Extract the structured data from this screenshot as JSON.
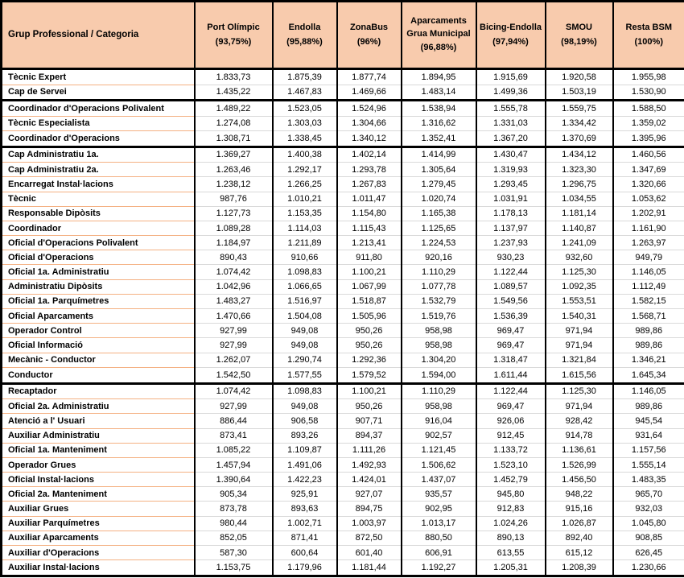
{
  "colors": {
    "header_bg": "#F8CBAD",
    "category_row_line": "#F4B183",
    "data_row_line": "#D9D9D9",
    "table_border": "#000000"
  },
  "table": {
    "header": {
      "category_label": "Grup Professional / Categoria",
      "columns": [
        {
          "name": "Port Olímpic",
          "pct": "(93,75%)"
        },
        {
          "name": "Endolla",
          "pct": "(95,88%)"
        },
        {
          "name": "ZonaBus",
          "pct": "(96%)"
        },
        {
          "name": "Aparcaments Grua Municipal",
          "pct": "(96,88%)"
        },
        {
          "name": "Bicing-Endolla",
          "pct": "(97,94%)"
        },
        {
          "name": "SMOU",
          "pct": "(98,19%)"
        },
        {
          "name": "Resta BSM",
          "pct": "(100%)"
        }
      ]
    },
    "groups": [
      {
        "rows": [
          {
            "label": "Tècnic Expert",
            "values": [
              "1.833,73",
              "1.875,39",
              "1.877,74",
              "1.894,95",
              "1.915,69",
              "1.920,58",
              "1.955,98"
            ]
          },
          {
            "label": "Cap de Servei",
            "values": [
              "1.435,22",
              "1.467,83",
              "1.469,66",
              "1.483,14",
              "1.499,36",
              "1.503,19",
              "1.530,90"
            ]
          }
        ]
      },
      {
        "rows": [
          {
            "label": "Coordinador d'Operacions Polivalent",
            "values": [
              "1.489,22",
              "1.523,05",
              "1.524,96",
              "1.538,94",
              "1.555,78",
              "1.559,75",
              "1.588,50"
            ]
          },
          {
            "label": "Tècnic Especialista",
            "values": [
              "1.274,08",
              "1.303,03",
              "1.304,66",
              "1.316,62",
              "1.331,03",
              "1.334,42",
              "1.359,02"
            ]
          },
          {
            "label": "Coordinador d'Operacions",
            "values": [
              "1.308,71",
              "1.338,45",
              "1.340,12",
              "1.352,41",
              "1.367,20",
              "1.370,69",
              "1.395,96"
            ]
          }
        ]
      },
      {
        "rows": [
          {
            "label": "Cap Administratiu 1a.",
            "values": [
              "1.369,27",
              "1.400,38",
              "1.402,14",
              "1.414,99",
              "1.430,47",
              "1.434,12",
              "1.460,56"
            ]
          },
          {
            "label": "Cap Administratiu 2a.",
            "values": [
              "1.263,46",
              "1.292,17",
              "1.293,78",
              "1.305,64",
              "1.319,93",
              "1.323,30",
              "1.347,69"
            ]
          },
          {
            "label": "Encarregat Instal·lacions",
            "values": [
              "1.238,12",
              "1.266,25",
              "1.267,83",
              "1.279,45",
              "1.293,45",
              "1.296,75",
              "1.320,66"
            ]
          },
          {
            "label": "Tècnic",
            "values": [
              "987,76",
              "1.010,21",
              "1.011,47",
              "1.020,74",
              "1.031,91",
              "1.034,55",
              "1.053,62"
            ]
          },
          {
            "label": "Responsable Dipòsits",
            "values": [
              "1.127,73",
              "1.153,35",
              "1.154,80",
              "1.165,38",
              "1.178,13",
              "1.181,14",
              "1.202,91"
            ]
          },
          {
            "label": "Coordinador",
            "values": [
              "1.089,28",
              "1.114,03",
              "1.115,43",
              "1.125,65",
              "1.137,97",
              "1.140,87",
              "1.161,90"
            ]
          },
          {
            "label": "Oficial d'Operacions Polivalent",
            "values": [
              "1.184,97",
              "1.211,89",
              "1.213,41",
              "1.224,53",
              "1.237,93",
              "1.241,09",
              "1.263,97"
            ]
          },
          {
            "label": "Oficial d'Operacions",
            "values": [
              "890,43",
              "910,66",
              "911,80",
              "920,16",
              "930,23",
              "932,60",
              "949,79"
            ]
          },
          {
            "label": "Oficial 1a. Administratiu",
            "values": [
              "1.074,42",
              "1.098,83",
              "1.100,21",
              "1.110,29",
              "1.122,44",
              "1.125,30",
              "1.146,05"
            ]
          },
          {
            "label": "Administratiu Dipòsits",
            "values": [
              "1.042,96",
              "1.066,65",
              "1.067,99",
              "1.077,78",
              "1.089,57",
              "1.092,35",
              "1.112,49"
            ]
          },
          {
            "label": "Oficial 1a. Parquímetres",
            "values": [
              "1.483,27",
              "1.516,97",
              "1.518,87",
              "1.532,79",
              "1.549,56",
              "1.553,51",
              "1.582,15"
            ]
          },
          {
            "label": "Oficial Aparcaments",
            "values": [
              "1.470,66",
              "1.504,08",
              "1.505,96",
              "1.519,76",
              "1.536,39",
              "1.540,31",
              "1.568,71"
            ]
          },
          {
            "label": "Operador Control",
            "values": [
              "927,99",
              "949,08",
              "950,26",
              "958,98",
              "969,47",
              "971,94",
              "989,86"
            ]
          },
          {
            "label": "Oficial Informació",
            "values": [
              "927,99",
              "949,08",
              "950,26",
              "958,98",
              "969,47",
              "971,94",
              "989,86"
            ]
          },
          {
            "label": "Mecànic - Conductor",
            "values": [
              "1.262,07",
              "1.290,74",
              "1.292,36",
              "1.304,20",
              "1.318,47",
              "1.321,84",
              "1.346,21"
            ]
          },
          {
            "label": "Conductor",
            "values": [
              "1.542,50",
              "1.577,55",
              "1.579,52",
              "1.594,00",
              "1.611,44",
              "1.615,56",
              "1.645,34"
            ]
          }
        ]
      },
      {
        "rows": [
          {
            "label": "Recaptador",
            "values": [
              "1.074,42",
              "1.098,83",
              "1.100,21",
              "1.110,29",
              "1.122,44",
              "1.125,30",
              "1.146,05"
            ]
          },
          {
            "label": "Oficial 2a. Administratiu",
            "values": [
              "927,99",
              "949,08",
              "950,26",
              "958,98",
              "969,47",
              "971,94",
              "989,86"
            ]
          },
          {
            "label": "Atenció a l' Usuari",
            "values": [
              "886,44",
              "906,58",
              "907,71",
              "916,04",
              "926,06",
              "928,42",
              "945,54"
            ]
          },
          {
            "label": "Auxiliar Administratiu",
            "values": [
              "873,41",
              "893,26",
              "894,37",
              "902,57",
              "912,45",
              "914,78",
              "931,64"
            ]
          },
          {
            "label": "Oficial 1a. Manteniment",
            "values": [
              "1.085,22",
              "1.109,87",
              "1.111,26",
              "1.121,45",
              "1.133,72",
              "1.136,61",
              "1.157,56"
            ]
          },
          {
            "label": "Operador Grues",
            "values": [
              "1.457,94",
              "1.491,06",
              "1.492,93",
              "1.506,62",
              "1.523,10",
              "1.526,99",
              "1.555,14"
            ]
          },
          {
            "label": "Oficial Instal·lacions",
            "values": [
              "1.390,64",
              "1.422,23",
              "1.424,01",
              "1.437,07",
              "1.452,79",
              "1.456,50",
              "1.483,35"
            ]
          },
          {
            "label": "Oficial 2a. Manteniment",
            "values": [
              "905,34",
              "925,91",
              "927,07",
              "935,57",
              "945,80",
              "948,22",
              "965,70"
            ]
          },
          {
            "label": "Auxiliar Grues",
            "values": [
              "873,78",
              "893,63",
              "894,75",
              "902,95",
              "912,83",
              "915,16",
              "932,03"
            ]
          },
          {
            "label": "Auxiliar Parquímetres",
            "values": [
              "980,44",
              "1.002,71",
              "1.003,97",
              "1.013,17",
              "1.024,26",
              "1.026,87",
              "1.045,80"
            ]
          },
          {
            "label": "Auxiliar Aparcaments",
            "values": [
              "852,05",
              "871,41",
              "872,50",
              "880,50",
              "890,13",
              "892,40",
              "908,85"
            ]
          },
          {
            "label": "Auxiliar d'Operacions",
            "values": [
              "587,30",
              "600,64",
              "601,40",
              "606,91",
              "613,55",
              "615,12",
              "626,45"
            ]
          },
          {
            "label": "Auxiliar Instal·lacions",
            "values": [
              "1.153,75",
              "1.179,96",
              "1.181,44",
              "1.192,27",
              "1.205,31",
              "1.208,39",
              "1.230,66"
            ]
          }
        ]
      }
    ]
  }
}
